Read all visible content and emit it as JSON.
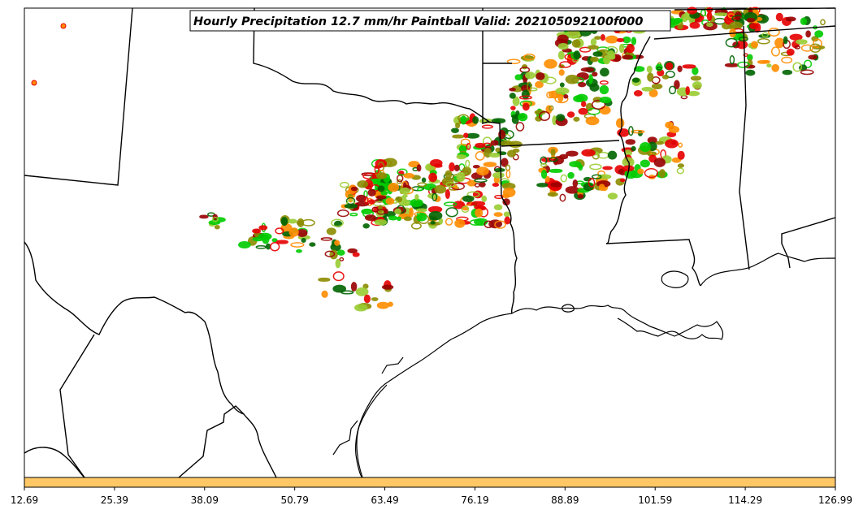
{
  "map": {
    "title": "Hourly Precipitation 12.7 mm/hr Paintball Valid: 202105092100f000",
    "colorbar": {
      "fill_color": "#ffc766",
      "tick_labels": [
        "12.69",
        "25.39",
        "38.09",
        "50.79",
        "63.49",
        "76.19",
        "88.89",
        "101.59",
        "114.29",
        "126.99"
      ]
    },
    "colors": {
      "boundary": "#000000",
      "members": [
        "#ff8c00",
        "#e60000",
        "#990000",
        "#00cc00",
        "#006400",
        "#8b8b00",
        "#9acd32"
      ]
    }
  }
}
